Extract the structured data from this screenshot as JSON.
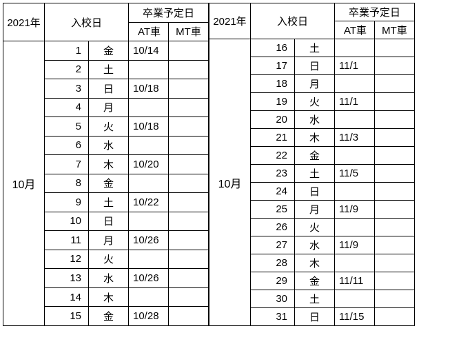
{
  "year_label": "2021年",
  "enroll_label": "入校日",
  "grad_label": "卒業予定日",
  "at_label": "AT車",
  "mt_label": "MT車",
  "month_label": "10月",
  "left_rows": [
    {
      "d": "1",
      "w": "金",
      "at": "10/14",
      "mt": ""
    },
    {
      "d": "2",
      "w": "土",
      "at": "",
      "mt": ""
    },
    {
      "d": "3",
      "w": "日",
      "at": "10/18",
      "mt": ""
    },
    {
      "d": "4",
      "w": "月",
      "at": "",
      "mt": ""
    },
    {
      "d": "5",
      "w": "火",
      "at": "10/18",
      "mt": ""
    },
    {
      "d": "6",
      "w": "水",
      "at": "",
      "mt": ""
    },
    {
      "d": "7",
      "w": "木",
      "at": "10/20",
      "mt": ""
    },
    {
      "d": "8",
      "w": "金",
      "at": "",
      "mt": ""
    },
    {
      "d": "9",
      "w": "土",
      "at": "10/22",
      "mt": ""
    },
    {
      "d": "10",
      "w": "日",
      "at": "",
      "mt": ""
    },
    {
      "d": "11",
      "w": "月",
      "at": "10/26",
      "mt": ""
    },
    {
      "d": "12",
      "w": "火",
      "at": "",
      "mt": ""
    },
    {
      "d": "13",
      "w": "水",
      "at": "10/26",
      "mt": ""
    },
    {
      "d": "14",
      "w": "木",
      "at": "",
      "mt": ""
    },
    {
      "d": "15",
      "w": "金",
      "at": "10/28",
      "mt": ""
    }
  ],
  "right_rows": [
    {
      "d": "16",
      "w": "土",
      "at": "",
      "mt": ""
    },
    {
      "d": "17",
      "w": "日",
      "at": "11/1",
      "mt": ""
    },
    {
      "d": "18",
      "w": "月",
      "at": "",
      "mt": ""
    },
    {
      "d": "19",
      "w": "火",
      "at": "11/1",
      "mt": ""
    },
    {
      "d": "20",
      "w": "水",
      "at": "",
      "mt": ""
    },
    {
      "d": "21",
      "w": "木",
      "at": "11/3",
      "mt": ""
    },
    {
      "d": "22",
      "w": "金",
      "at": "",
      "mt": ""
    },
    {
      "d": "23",
      "w": "土",
      "at": "11/5",
      "mt": ""
    },
    {
      "d": "24",
      "w": "日",
      "at": "",
      "mt": ""
    },
    {
      "d": "25",
      "w": "月",
      "at": "11/9",
      "mt": ""
    },
    {
      "d": "26",
      "w": "火",
      "at": "",
      "mt": ""
    },
    {
      "d": "27",
      "w": "水",
      "at": "11/9",
      "mt": ""
    },
    {
      "d": "28",
      "w": "木",
      "at": "",
      "mt": ""
    },
    {
      "d": "29",
      "w": "金",
      "at": "11/11",
      "mt": ""
    },
    {
      "d": "30",
      "w": "土",
      "at": "",
      "mt": ""
    },
    {
      "d": "31",
      "w": "日",
      "at": "11/15",
      "mt": ""
    }
  ]
}
